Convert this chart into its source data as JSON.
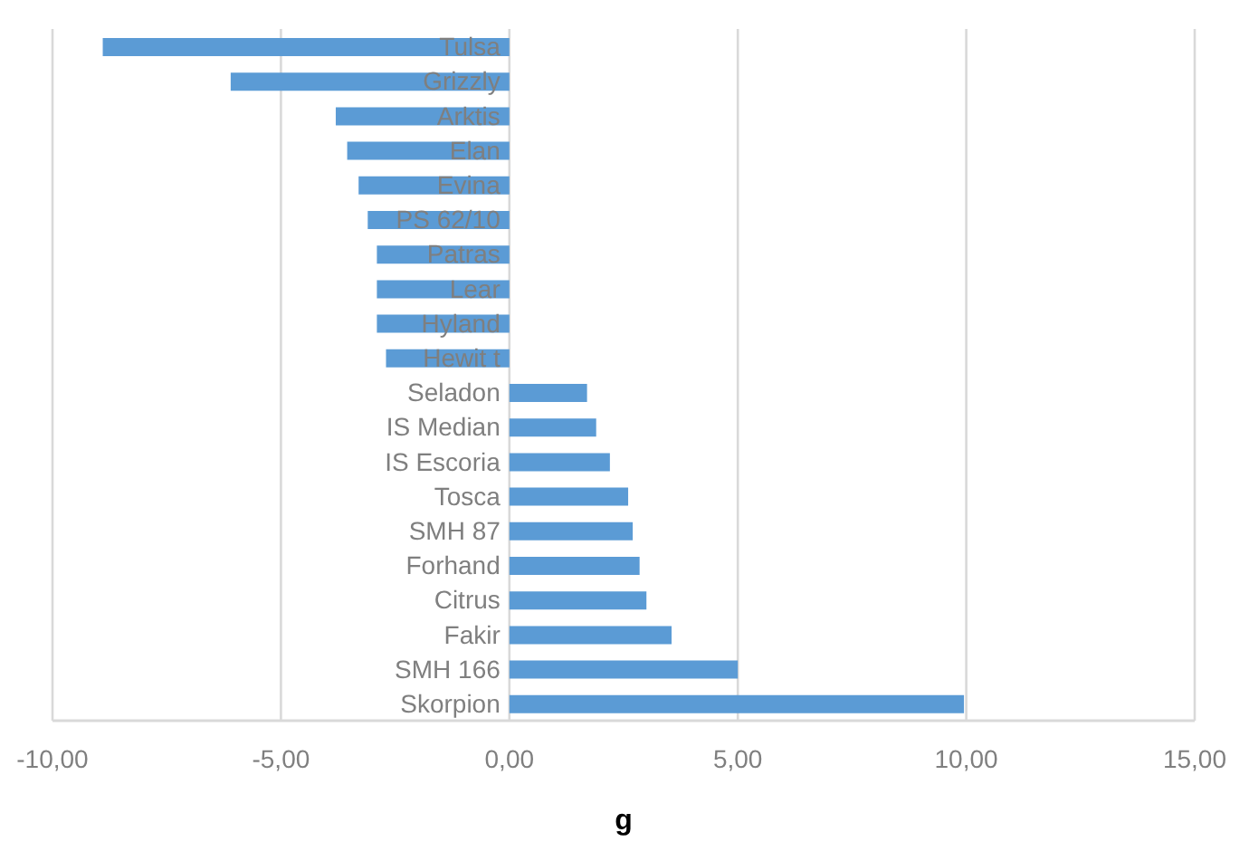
{
  "chart_data": {
    "type": "bar",
    "orientation": "horizontal",
    "xlabel": "g",
    "categories": [
      "Tulsa",
      "Grizzly",
      "Arktis",
      "Elan",
      "Evina",
      "PS 62/10",
      "Patras",
      "Lear",
      "Hyland",
      "Hewit t",
      "Seladon",
      "IS Median",
      "IS Escoria",
      "Tosca",
      "SMH 87",
      "Forhand",
      "Citrus",
      "Fakir",
      "SMH 166",
      "Skorpion"
    ],
    "values": [
      -8.9,
      -6.1,
      -3.8,
      -3.55,
      -3.3,
      -3.1,
      -2.9,
      -2.9,
      -2.9,
      -2.7,
      1.7,
      1.9,
      2.2,
      2.6,
      2.7,
      2.85,
      3.0,
      3.55,
      5.0,
      9.95
    ],
    "color": "#5b9bd5",
    "xlim": [
      -10,
      15
    ],
    "xticks": [
      {
        "value": -10,
        "label": "-10,00"
      },
      {
        "value": -5,
        "label": "-5,00"
      },
      {
        "value": 0,
        "label": "0,00"
      },
      {
        "value": 5,
        "label": "5,00"
      },
      {
        "value": 10,
        "label": "10,00"
      },
      {
        "value": 15,
        "label": "15,00"
      }
    ],
    "grid": "x",
    "legend": false
  }
}
